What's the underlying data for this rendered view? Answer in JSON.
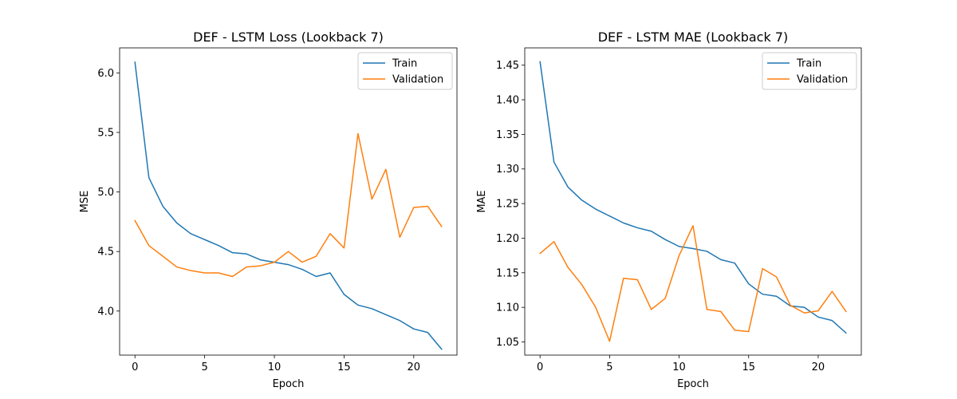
{
  "colors": {
    "train": "#1f77b4",
    "validation": "#ff7f0e"
  },
  "chart_data": [
    {
      "type": "line",
      "title": "DEF - LSTM Loss (Lookback 7)",
      "xlabel": "Epoch",
      "ylabel": "MSE",
      "xlim": [
        -1.1,
        23.1
      ],
      "ylim": [
        3.63,
        6.21
      ],
      "xticks": [
        0,
        5,
        10,
        15,
        20
      ],
      "xtick_labels": [
        "0",
        "5",
        "10",
        "15",
        "20"
      ],
      "yticks": [
        4.0,
        4.5,
        5.0,
        5.5,
        6.0
      ],
      "ytick_labels": [
        "4.0",
        "4.5",
        "5.0",
        "5.5",
        "6.0"
      ],
      "grid": false,
      "legend_position": "upper right",
      "x": [
        0,
        1,
        2,
        3,
        4,
        5,
        6,
        7,
        8,
        9,
        10,
        11,
        12,
        13,
        14,
        15,
        16,
        17,
        18,
        19,
        20,
        21,
        22
      ],
      "series": [
        {
          "name": "Train",
          "color_key": "train",
          "values": [
            6.09,
            5.12,
            4.88,
            4.74,
            4.65,
            4.6,
            4.55,
            4.49,
            4.48,
            4.43,
            4.41,
            4.39,
            4.35,
            4.29,
            4.32,
            4.14,
            4.05,
            4.02,
            3.97,
            3.92,
            3.85,
            3.82,
            3.68
          ]
        },
        {
          "name": "Validation",
          "color_key": "validation",
          "values": [
            4.76,
            4.55,
            4.46,
            4.37,
            4.34,
            4.32,
            4.32,
            4.29,
            4.37,
            4.38,
            4.41,
            4.5,
            4.41,
            4.46,
            4.65,
            4.53,
            5.49,
            4.94,
            5.19,
            4.62,
            4.87,
            4.88,
            4.71
          ]
        }
      ]
    },
    {
      "type": "line",
      "title": "DEF - LSTM MAE (Lookback 7)",
      "xlabel": "Epoch",
      "ylabel": "MAE",
      "xlim": [
        -1.1,
        23.1
      ],
      "ylim": [
        1.031,
        1.475
      ],
      "xticks": [
        0,
        5,
        10,
        15,
        20
      ],
      "xtick_labels": [
        "0",
        "5",
        "10",
        "15",
        "20"
      ],
      "yticks": [
        1.05,
        1.1,
        1.15,
        1.2,
        1.25,
        1.3,
        1.35,
        1.4,
        1.45
      ],
      "ytick_labels": [
        "1.05",
        "1.10",
        "1.15",
        "1.20",
        "1.25",
        "1.30",
        "1.35",
        "1.40",
        "1.45"
      ],
      "grid": false,
      "legend_position": "upper right",
      "x": [
        0,
        1,
        2,
        3,
        4,
        5,
        6,
        7,
        8,
        9,
        10,
        11,
        12,
        13,
        14,
        15,
        16,
        17,
        18,
        19,
        20,
        21,
        22
      ],
      "series": [
        {
          "name": "Train",
          "color_key": "train",
          "values": [
            1.455,
            1.31,
            1.274,
            1.255,
            1.242,
            1.232,
            1.222,
            1.215,
            1.21,
            1.198,
            1.188,
            1.185,
            1.181,
            1.169,
            1.164,
            1.134,
            1.119,
            1.116,
            1.102,
            1.1,
            1.086,
            1.081,
            1.063
          ]
        },
        {
          "name": "Validation",
          "color_key": "validation",
          "values": [
            1.178,
            1.195,
            1.158,
            1.133,
            1.1,
            1.051,
            1.142,
            1.14,
            1.097,
            1.113,
            1.175,
            1.218,
            1.097,
            1.094,
            1.067,
            1.065,
            1.156,
            1.144,
            1.103,
            1.092,
            1.095,
            1.123,
            1.094
          ]
        }
      ]
    }
  ]
}
